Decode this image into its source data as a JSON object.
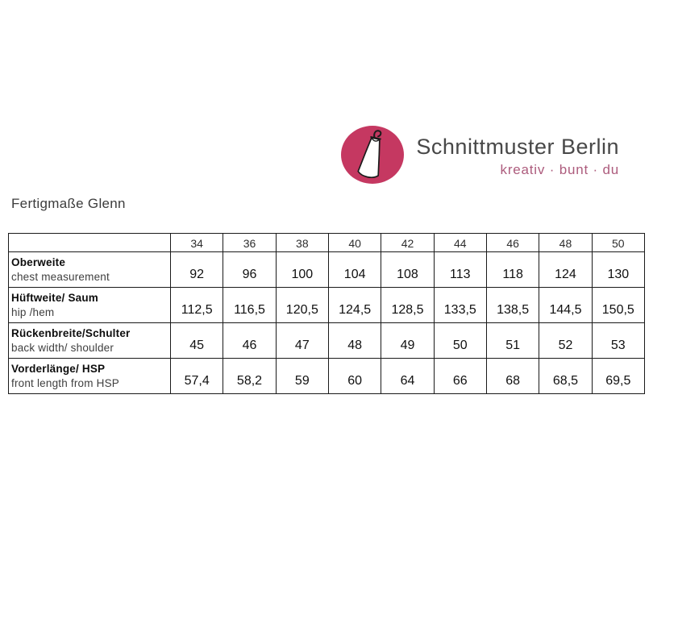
{
  "brand": {
    "name": "Schnittmuster Berlin",
    "tagline": "kreativ · bunt · du",
    "logo_icon": "dress-on-hanger-icon",
    "logo_color": "#c53861",
    "tagline_color": "#ad5c7d",
    "name_color": "#484848"
  },
  "page_title": "Fertigmaße Glenn",
  "chart_data": {
    "type": "table",
    "title": "Fertigmaße Glenn",
    "corner_label": "",
    "sizes": [
      "34",
      "36",
      "38",
      "40",
      "42",
      "44",
      "46",
      "48",
      "50"
    ],
    "rows": [
      {
        "label_de": "Oberweite",
        "label_en": "chest measurement",
        "values": [
          "92",
          "96",
          "100",
          "104",
          "108",
          "113",
          "118",
          "124",
          "130"
        ]
      },
      {
        "label_de": "Hüftweite/ Saum",
        "label_en": "hip /hem",
        "values": [
          "112,5",
          "116,5",
          "120,5",
          "124,5",
          "128,5",
          "133,5",
          "138,5",
          "144,5",
          "150,5"
        ]
      },
      {
        "label_de": "Rückenbreite/Schulter",
        "label_en": "back width/ shoulder",
        "values": [
          "45",
          "46",
          "47",
          "48",
          "49",
          "50",
          "51",
          "52",
          "53"
        ]
      },
      {
        "label_de": "Vorderlänge/ HSP",
        "label_en": "front length from HSP",
        "values": [
          "57,4",
          "58,2",
          "59",
          "60",
          "64",
          "66",
          "68",
          "68,5",
          "69,5"
        ]
      }
    ]
  }
}
